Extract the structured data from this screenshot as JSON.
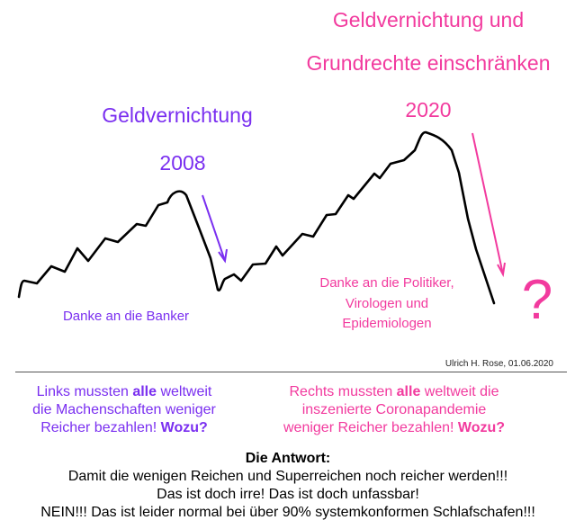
{
  "colors": {
    "purple": "#7a2ff0",
    "pink": "#f23a9e",
    "curve": "#000000"
  },
  "left_event": {
    "title": "Geldvernichtung",
    "year": "2008",
    "thanks": "Danke an die Banker"
  },
  "right_event": {
    "title_line1": "Geldvernichtung und",
    "title_line2": "Grundrechte einschränken",
    "year": "2020",
    "thanks_lines": [
      "Danke an die Politiker,",
      "Virologen und",
      "Epidemiologen"
    ],
    "question": "?"
  },
  "credit": "Ulrich H. Rose, 01.06.2020",
  "left_text": {
    "l1a": "Links mussten ",
    "l1b": "alle",
    "l1c": " weltweit",
    "l2": "die Machenschaften weniger",
    "l3a": "Reicher bezahlen! ",
    "l3b": "Wozu?"
  },
  "right_text": {
    "l1a": "Rechts mussten ",
    "l1b": "alle",
    "l1c": " weltweit die",
    "l2": "inszenierte Coronapandemie",
    "l3a": "weniger Reicher bezahlen! ",
    "l3b": "Wozu?"
  },
  "answer": {
    "heading": "Die Antwort:",
    "lines": [
      "Damit die wenigen Reichen und Superreichen noch reicher werden!!!",
      "Das ist doch irre! Das ist doch unfassbar!",
      "NEIN!!! Das ist leider normal bei über 90% systemkonformen Schlafschafen!!!"
    ]
  }
}
